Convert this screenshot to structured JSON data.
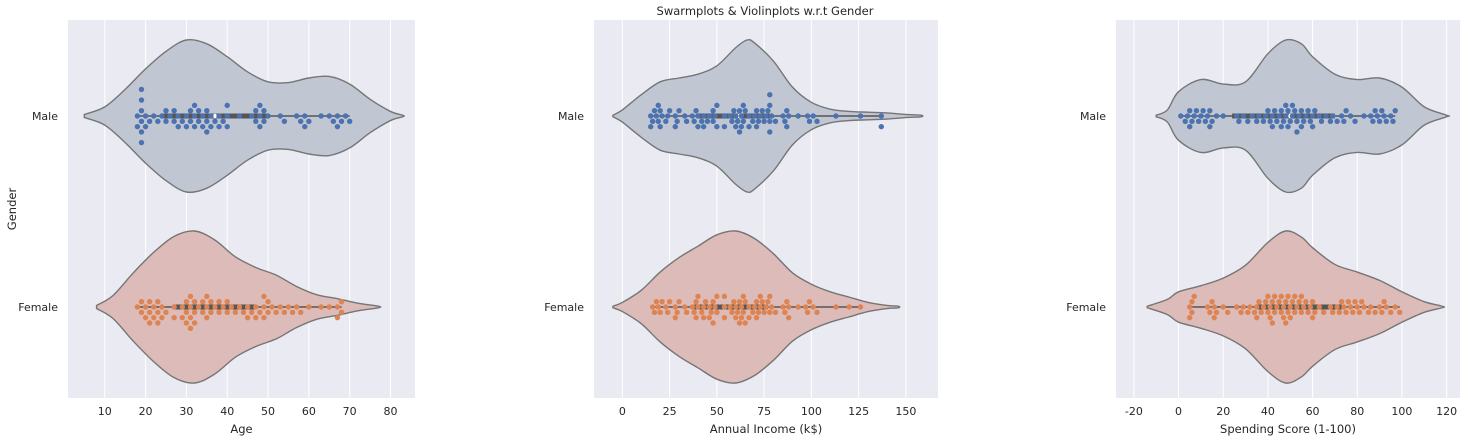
{
  "title": "Swarmplots & Violinplots w.r.t Gender",
  "colors": {
    "plot_background": "#eaeaf2",
    "grid": "#ffffff",
    "male_violin": "#c0c7d3",
    "female_violin": "#dcbbb8",
    "violin_edge": "#757575",
    "male_points": "#4c72b0",
    "female_points": "#dd8452",
    "box_line": "#555555"
  },
  "chart_data": [
    {
      "type": "violin+swarm",
      "xlabel": "Age",
      "ylabel": "Gender",
      "categories": [
        "Male",
        "Female"
      ],
      "xlim": [
        1,
        86
      ],
      "xticks": [
        10,
        20,
        30,
        40,
        50,
        60,
        70,
        80
      ],
      "grid": true,
      "legend": "none",
      "series": [
        {
          "name": "Male",
          "values": [
            18,
            18,
            19,
            19,
            19,
            19,
            19,
            19,
            20,
            20,
            21,
            22,
            23,
            24,
            25,
            25,
            26,
            27,
            27,
            28,
            28,
            29,
            30,
            30,
            31,
            31,
            32,
            32,
            32,
            33,
            33,
            34,
            34,
            35,
            35,
            35,
            36,
            36,
            37,
            38,
            38,
            39,
            40,
            40,
            40,
            43,
            46,
            47,
            47,
            48,
            48,
            48,
            49,
            49,
            50,
            53,
            54,
            57,
            58,
            59,
            59,
            60,
            63,
            65,
            66,
            67,
            67,
            68,
            69,
            70
          ],
          "violin": {
            "y": [
              5,
              10,
              15,
              20,
              25,
              30,
              35,
              40,
              45,
              50,
              55,
              60,
              65,
              70,
              75,
              80,
              83
            ],
            "density": [
              0.02,
              0.12,
              0.35,
              0.62,
              0.85,
              1.0,
              0.95,
              0.78,
              0.58,
              0.45,
              0.44,
              0.5,
              0.52,
              0.42,
              0.22,
              0.06,
              0.01
            ]
          },
          "box": {
            "q1": 24,
            "median": 37,
            "q3": 50
          }
        },
        {
          "name": "Female",
          "values": [
            18,
            19,
            19,
            20,
            20,
            21,
            21,
            21,
            22,
            22,
            23,
            23,
            23,
            24,
            24,
            25,
            27,
            27,
            29,
            29,
            30,
            30,
            30,
            31,
            31,
            31,
            31,
            32,
            32,
            32,
            33,
            34,
            34,
            35,
            35,
            35,
            36,
            36,
            37,
            38,
            38,
            39,
            40,
            40,
            41,
            42,
            43,
            44,
            45,
            45,
            46,
            47,
            47,
            48,
            49,
            49,
            49,
            50,
            50,
            51,
            52,
            53,
            54,
            55,
            56,
            57,
            58,
            60,
            63,
            65,
            67,
            67,
            68,
            68
          ],
          "violin": {
            "y": [
              8,
              12,
              17,
              22,
              27,
              32,
              37,
              42,
              47,
              52,
              57,
              62,
              67,
              72,
              77
            ],
            "density": [
              0.02,
              0.15,
              0.45,
              0.72,
              0.93,
              1.0,
              0.88,
              0.66,
              0.52,
              0.42,
              0.27,
              0.16,
              0.11,
              0.05,
              0.01
            ]
          },
          "box": {
            "q1": 27,
            "median": 35,
            "q3": 47
          }
        }
      ]
    },
    {
      "type": "violin+swarm",
      "xlabel": "Annual Income (k$)",
      "ylabel": "",
      "categories": [
        "Male",
        "Female"
      ],
      "xlim": [
        -15,
        167
      ],
      "xticks": [
        0,
        25,
        50,
        75,
        100,
        125,
        150
      ],
      "grid": true,
      "legend": "none",
      "series": [
        {
          "name": "Male",
          "values": [
            15,
            15,
            16,
            17,
            18,
            19,
            19,
            20,
            20,
            21,
            23,
            24,
            25,
            28,
            28,
            29,
            30,
            33,
            34,
            37,
            38,
            39,
            40,
            40,
            42,
            43,
            43,
            45,
            46,
            48,
            48,
            49,
            50,
            50,
            54,
            54,
            57,
            58,
            59,
            60,
            60,
            61,
            62,
            62,
            63,
            63,
            64,
            64,
            65,
            67,
            67,
            69,
            70,
            71,
            71,
            72,
            73,
            74,
            75,
            76,
            77,
            78,
            78,
            78,
            78,
            79,
            81,
            85,
            86,
            87,
            87,
            88,
            93,
            98,
            99,
            101,
            103,
            113,
            126,
            137,
            137
          ],
          "violin": {
            "y": [
              -5,
              0,
              10,
              20,
              30,
              40,
              50,
              60,
              66,
              70,
              80,
              90,
              100,
              110,
              120,
              130,
              140,
              150,
              158
            ],
            "density": [
              0.01,
              0.08,
              0.28,
              0.45,
              0.5,
              0.55,
              0.66,
              0.9,
              1.0,
              0.96,
              0.72,
              0.38,
              0.18,
              0.09,
              0.06,
              0.05,
              0.04,
              0.02,
              0.01
            ]
          },
          "box": {
            "q1": 40,
            "median": 62,
            "q3": 78
          }
        },
        {
          "name": "Female",
          "values": [
            16,
            17,
            18,
            19,
            20,
            21,
            23,
            24,
            25,
            28,
            28,
            29,
            30,
            33,
            34,
            37,
            38,
            39,
            39,
            40,
            40,
            42,
            43,
            43,
            44,
            46,
            46,
            47,
            48,
            48,
            49,
            50,
            50,
            54,
            54,
            54,
            57,
            58,
            59,
            60,
            60,
            61,
            62,
            62,
            63,
            63,
            64,
            64,
            65,
            65,
            67,
            67,
            69,
            70,
            71,
            71,
            72,
            73,
            73,
            74,
            75,
            76,
            77,
            78,
            78,
            79,
            81,
            85,
            86,
            87,
            88,
            88,
            93,
            97,
            98,
            99,
            101,
            103,
            113,
            120,
            126
          ],
          "violin": {
            "y": [
              -5,
              0,
              10,
              20,
              30,
              40,
              50,
              60,
              70,
              80,
              90,
              100,
              110,
              120,
              130,
              140,
              146
            ],
            "density": [
              0.01,
              0.06,
              0.22,
              0.46,
              0.65,
              0.8,
              0.95,
              1.0,
              0.9,
              0.7,
              0.45,
              0.3,
              0.2,
              0.13,
              0.06,
              0.02,
              0.01
            ]
          },
          "box": {
            "q1": 38,
            "median": 60,
            "q3": 77
          }
        }
      ]
    },
    {
      "type": "violin+swarm",
      "xlabel": "Spending Score (1-100)",
      "ylabel": "",
      "categories": [
        "Male",
        "Female"
      ],
      "xlim": [
        -28,
        126
      ],
      "xticks": [
        -20,
        0,
        20,
        40,
        60,
        80,
        100,
        120
      ],
      "grid": true,
      "legend": "none",
      "series": [
        {
          "name": "Male",
          "values": [
            1,
            3,
            4,
            5,
            5,
            6,
            7,
            8,
            9,
            10,
            11,
            12,
            13,
            14,
            14,
            15,
            17,
            20,
            26,
            27,
            29,
            31,
            33,
            35,
            36,
            38,
            39,
            40,
            41,
            42,
            42,
            43,
            44,
            45,
            46,
            46,
            47,
            48,
            48,
            49,
            49,
            50,
            51,
            51,
            52,
            53,
            53,
            54,
            55,
            55,
            56,
            57,
            58,
            59,
            60,
            60,
            61,
            63,
            64,
            66,
            68,
            69,
            71,
            73,
            74,
            75,
            77,
            79,
            83,
            86,
            87,
            88,
            89,
            90,
            91,
            92,
            93,
            95,
            96,
            97
          ],
          "violin": {
            "y": [
              -10,
              -5,
              0,
              10,
              20,
              30,
              40,
              48,
              55,
              60,
              70,
              80,
              90,
              100,
              110,
              120
            ],
            "density": [
              0.01,
              0.08,
              0.32,
              0.48,
              0.42,
              0.45,
              0.82,
              1.0,
              0.95,
              0.78,
              0.55,
              0.48,
              0.5,
              0.38,
              0.12,
              0.01
            ]
          },
          "box": {
            "q1": 24,
            "median": 50,
            "q3": 70
          }
        },
        {
          "name": "Female",
          "values": [
            5,
            5,
            6,
            6,
            7,
            13,
            14,
            15,
            16,
            16,
            17,
            20,
            22,
            26,
            28,
            29,
            31,
            32,
            34,
            35,
            35,
            36,
            37,
            38,
            39,
            40,
            40,
            41,
            41,
            42,
            42,
            43,
            43,
            44,
            45,
            46,
            46,
            47,
            47,
            48,
            48,
            49,
            49,
            50,
            50,
            51,
            52,
            52,
            53,
            54,
            55,
            55,
            56,
            57,
            58,
            59,
            60,
            60,
            61,
            63,
            65,
            68,
            69,
            71,
            72,
            73,
            74,
            75,
            76,
            77,
            78,
            79,
            80,
            81,
            82,
            83,
            85,
            86,
            88,
            90,
            91,
            92,
            93,
            95,
            97,
            99
          ],
          "violin": {
            "y": [
              -14,
              -5,
              0,
              10,
              20,
              30,
              40,
              48,
              55,
              60,
              70,
              80,
              90,
              100,
              110,
              118
            ],
            "density": [
              0.01,
              0.1,
              0.2,
              0.28,
              0.38,
              0.55,
              0.85,
              1.0,
              0.92,
              0.78,
              0.56,
              0.46,
              0.35,
              0.2,
              0.07,
              0.01
            ]
          },
          "box": {
            "q1": 35,
            "median": 50,
            "q3": 73
          }
        }
      ]
    }
  ]
}
